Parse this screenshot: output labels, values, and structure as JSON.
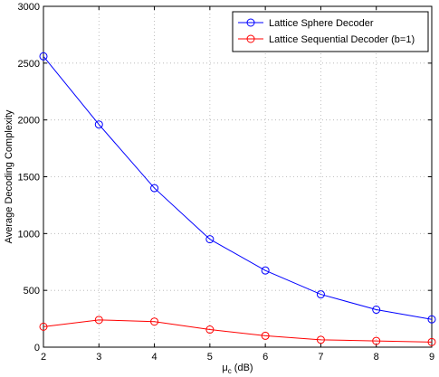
{
  "chart_data": {
    "type": "line",
    "xlabel_main": "μ",
    "xlabel_sub": "c",
    "xlabel_tail": " (dB)",
    "ylabel": "Average Decoding Complexity",
    "xlim": [
      2,
      9
    ],
    "ylim": [
      0,
      3000
    ],
    "xticks": [
      2,
      3,
      4,
      5,
      6,
      7,
      8,
      9
    ],
    "yticks": [
      0,
      500,
      1000,
      1500,
      2000,
      2500,
      3000
    ],
    "grid": true,
    "legend_position": "top-right",
    "x": [
      2,
      3,
      4,
      5,
      6,
      7,
      8,
      9
    ],
    "series": [
      {
        "name": "Lattice Sphere Decoder",
        "color": "#0000ff",
        "marker": "circle",
        "values": [
          2560,
          1960,
          1400,
          950,
          675,
          465,
          330,
          245
        ]
      },
      {
        "name": "Lattice Sequential Decoder (b=1)",
        "color": "#ff0000",
        "marker": "circle",
        "values": [
          180,
          240,
          225,
          155,
          100,
          65,
          55,
          45
        ]
      }
    ]
  }
}
